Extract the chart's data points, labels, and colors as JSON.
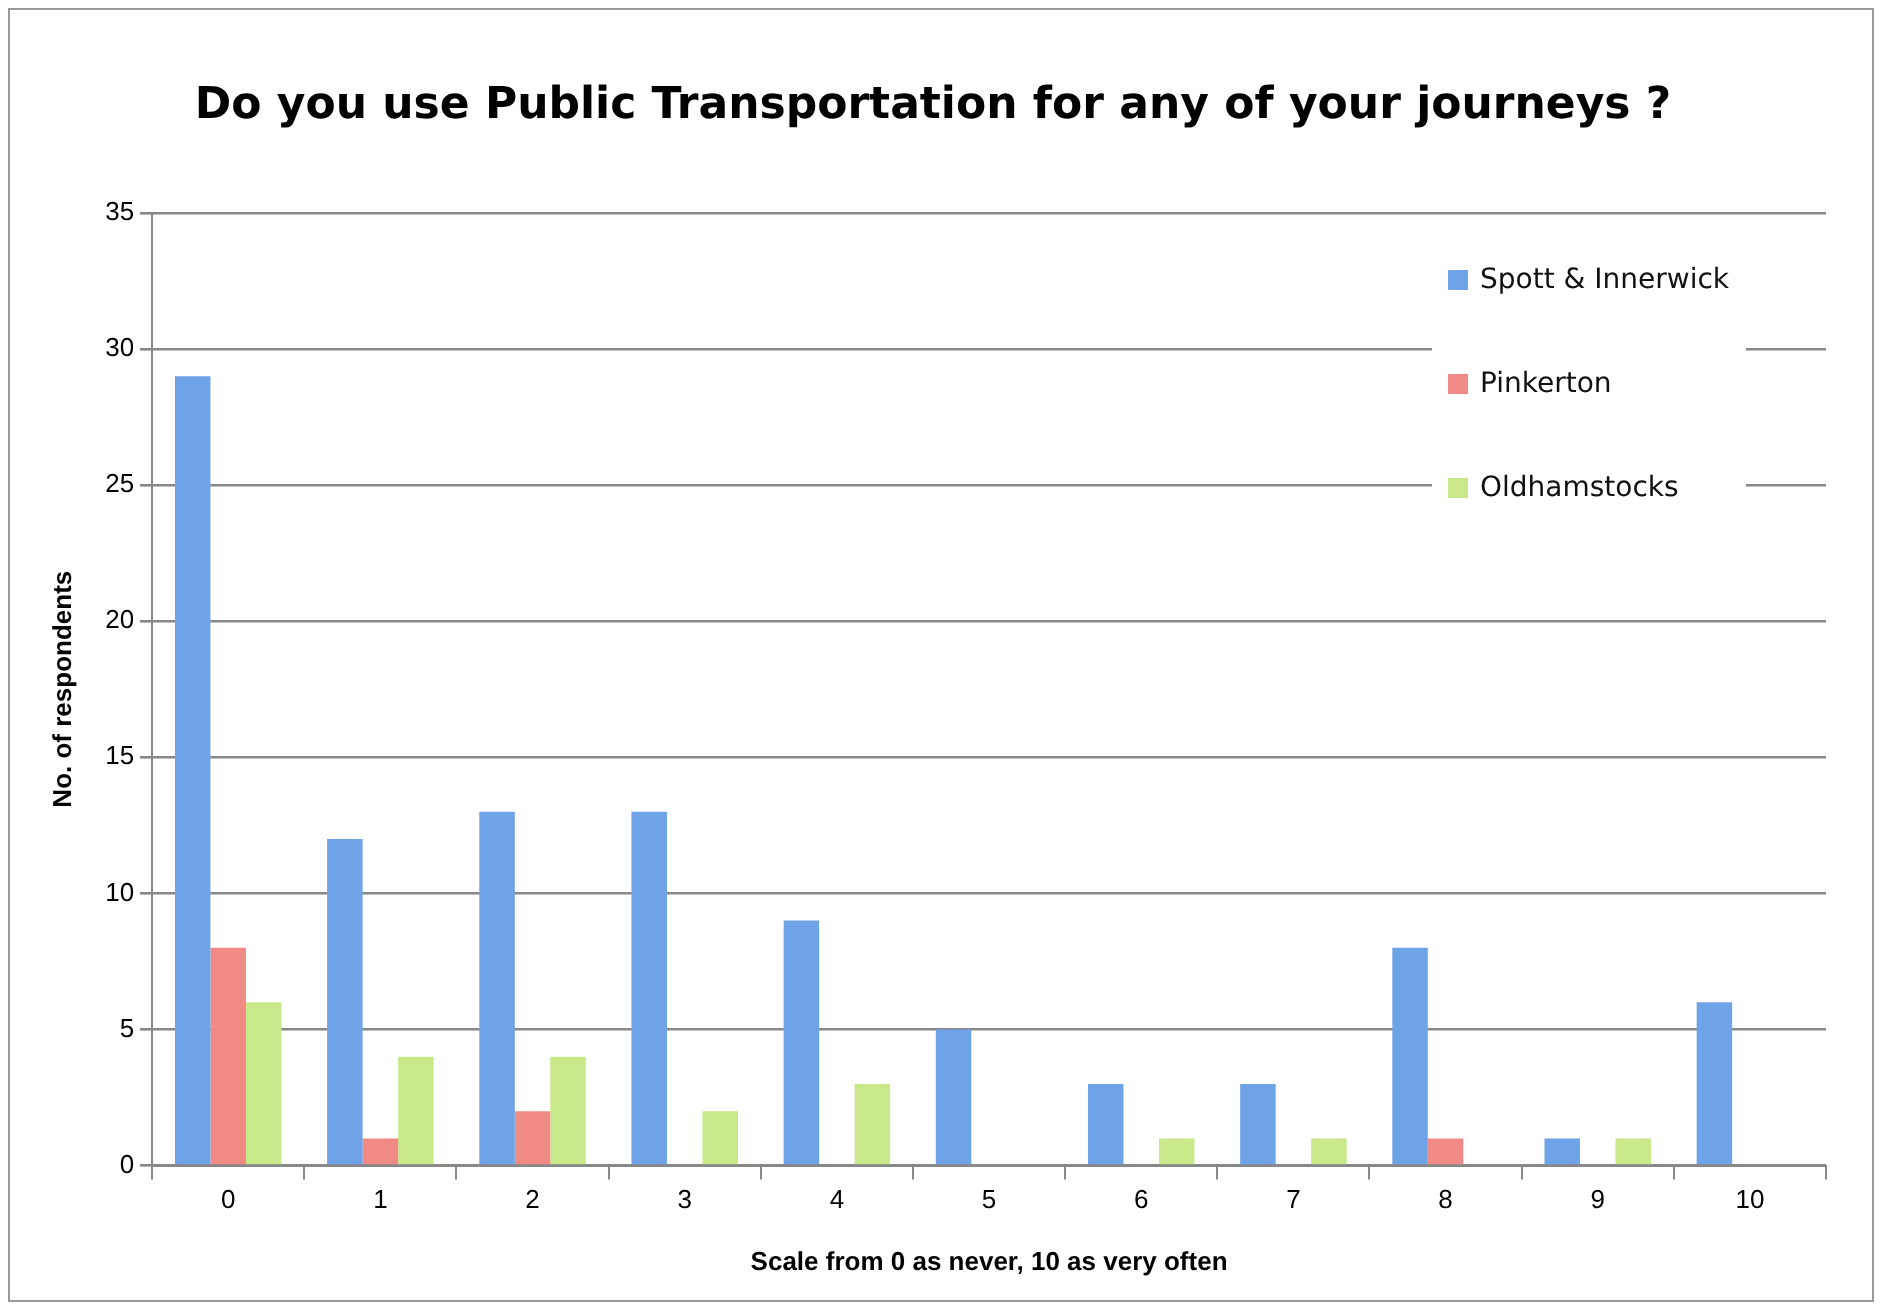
{
  "chart_data": {
    "type": "bar",
    "title": "Do you use Public Transportation for any of your journeys ?",
    "xlabel": "Scale from 0 as never, 10 as very often",
    "ylabel": "No. of respondents",
    "categories": [
      "0",
      "1",
      "2",
      "3",
      "4",
      "5",
      "6",
      "7",
      "8",
      "9",
      "10"
    ],
    "series": [
      {
        "name": "Spott & Innerwick",
        "color": "#6fa3e8",
        "values": [
          29,
          12,
          13,
          13,
          9,
          5,
          3,
          3,
          8,
          1,
          6
        ]
      },
      {
        "name": "Pinkerton",
        "color": "#f08a84",
        "values": [
          8,
          1,
          2,
          0,
          0,
          0,
          0,
          0,
          1,
          0,
          0
        ]
      },
      {
        "name": "Oldhamstocks",
        "color": "#c8e88a",
        "values": [
          6,
          4,
          4,
          2,
          3,
          0,
          1,
          1,
          0,
          1,
          0
        ]
      }
    ],
    "ylim": [
      0,
      35
    ],
    "yticks": [
      0,
      5,
      10,
      15,
      20,
      25,
      30,
      35
    ],
    "grid": "y",
    "legend": "top right"
  }
}
